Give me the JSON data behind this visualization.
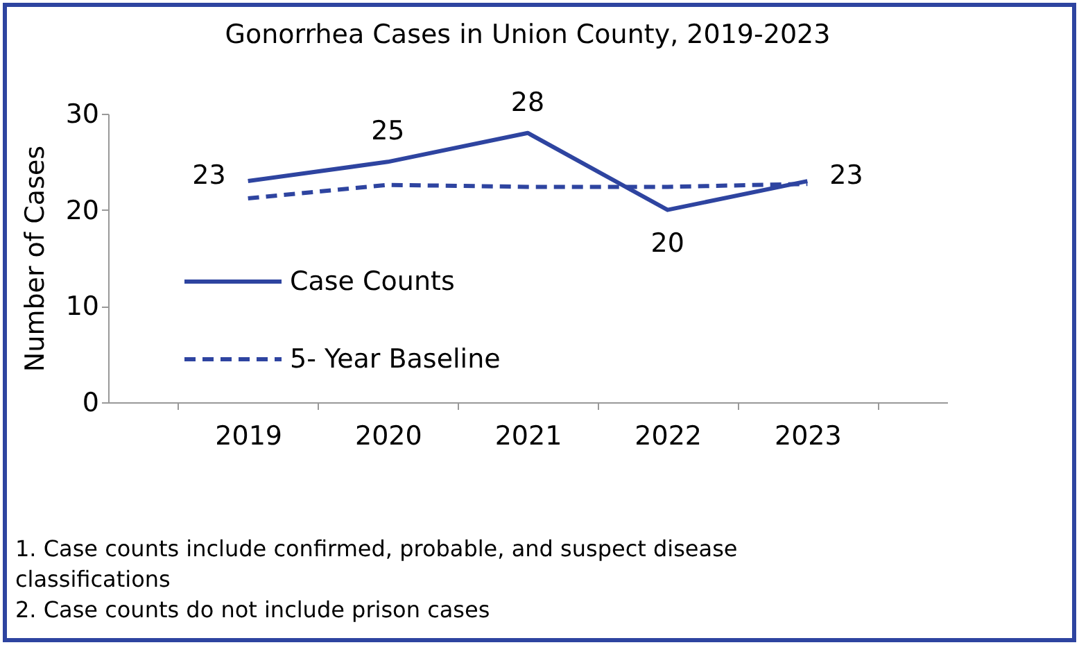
{
  "chart_data": {
    "type": "line",
    "title": "Gonorrhea Cases in Union County, 2019-2023",
    "ylabel": "Number of Cases",
    "categories": [
      "2019",
      "2020",
      "2021",
      "2022",
      "2023"
    ],
    "series": [
      {
        "name": "Case Counts",
        "color": "#2e44a0",
        "line_style": "solid",
        "values": [
          23,
          25,
          28,
          20,
          23
        ],
        "value_labels": [
          "23",
          "25",
          "28",
          "20",
          "23"
        ]
      },
      {
        "name": "5- Year Baseline",
        "color": "#2e44a0",
        "line_style": "dashed",
        "values": [
          21.2,
          22.6,
          22.4,
          22.4,
          22.7
        ]
      }
    ],
    "ylim": [
      0,
      30
    ],
    "yticks": [
      0,
      10,
      20,
      30
    ],
    "grid": false,
    "legend": "bottom left",
    "marker": "none",
    "annotations": [
      "1. Case counts include confirmed, probable, and suspect disease classifications",
      "2. Case counts do not include prison cases"
    ]
  }
}
